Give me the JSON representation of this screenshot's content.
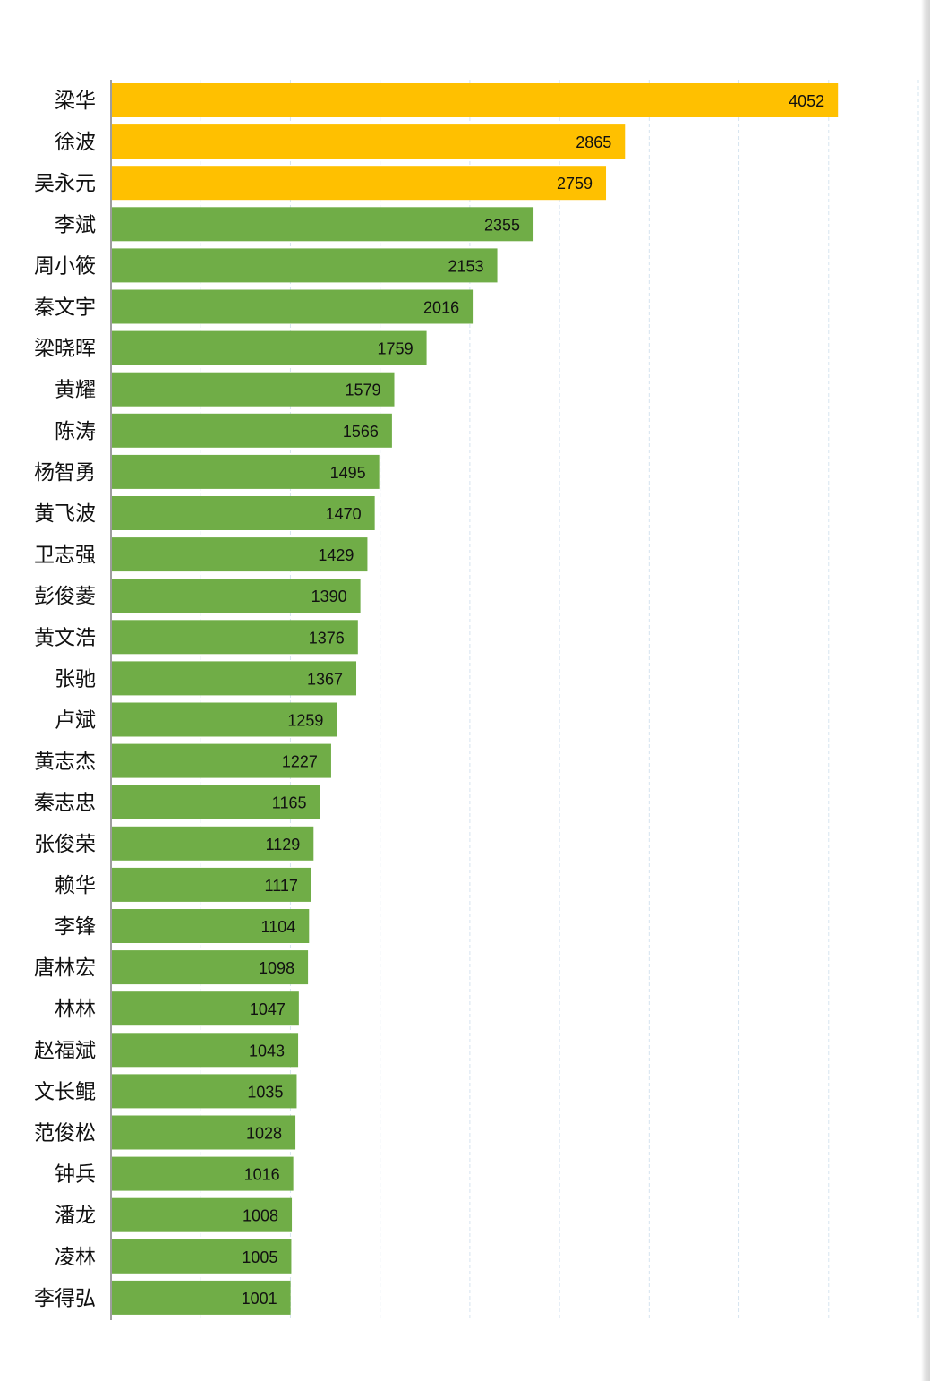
{
  "chart_data": {
    "type": "bar",
    "orientation": "horizontal",
    "title": "",
    "xlabel": "",
    "ylabel": "",
    "xlim": [
      0,
      4500
    ],
    "grid": true,
    "legend": "none",
    "colors": {
      "highlight": "#FFC000",
      "normal": "#70AD47",
      "grid": "#D6E4EF",
      "axis": "#7F7F7F"
    },
    "highlight_top_n": 3,
    "categories": [
      "梁华",
      "徐波",
      "吴永元",
      "李斌",
      "周小筱",
      "秦文宇",
      "梁晓晖",
      "黄耀",
      "陈涛",
      "杨智勇",
      "黄飞波",
      "卫志强",
      "彭俊菱",
      "黄文浩",
      "张驰",
      "卢斌",
      "黄志杰",
      "秦志忠",
      "张俊荣",
      "赖华",
      "李锋",
      "唐林宏",
      "林林",
      "赵福斌",
      "文长鲲",
      "范俊松",
      "钟兵",
      "潘龙",
      "凌林",
      "李得弘"
    ],
    "values": [
      4052,
      2865,
      2759,
      2355,
      2153,
      2016,
      1759,
      1579,
      1566,
      1495,
      1470,
      1429,
      1390,
      1376,
      1367,
      1259,
      1227,
      1165,
      1129,
      1117,
      1104,
      1098,
      1047,
      1043,
      1035,
      1028,
      1016,
      1008,
      1005,
      1001
    ]
  }
}
